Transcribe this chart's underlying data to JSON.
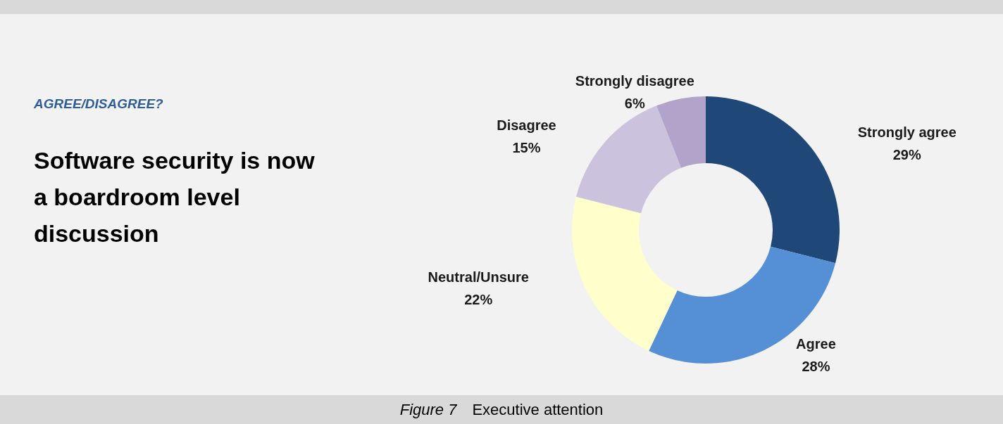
{
  "chart_data": {
    "type": "donut",
    "title": "Software security is now a boardroom level discussion",
    "subtitle": "AGREE/DISAGREE?",
    "annotations": [
      "Figure 7",
      "Executive attention"
    ],
    "categories": [
      "Strongly agree",
      "Agree",
      "Neutral/Unsure",
      "Disagree",
      "Strongly disagree"
    ],
    "values": [
      29,
      28,
      22,
      15,
      6
    ],
    "value_labels": [
      "29%",
      "28%",
      "22%",
      "15%",
      "6%"
    ],
    "colors": [
      "#1f4778",
      "#558fd6",
      "#ffffcc",
      "#cbc3dd",
      "#b1a3c9"
    ],
    "legend": false
  }
}
